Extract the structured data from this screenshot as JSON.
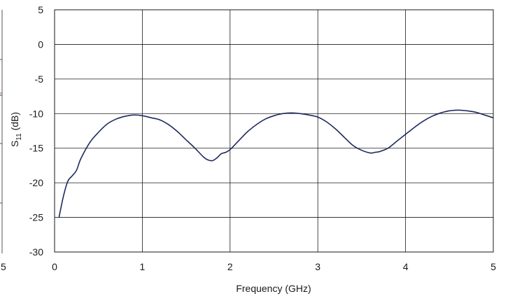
{
  "chart_data": {
    "type": "line",
    "xlabel": "Frequency (GHz)",
    "ylabel": {
      "base": "S",
      "sub": "11",
      "rest": " (dB)"
    },
    "xlim": [
      0,
      5
    ],
    "ylim": [
      -30,
      5
    ],
    "xticks": [
      0,
      1,
      2,
      3,
      4,
      5
    ],
    "yticks": [
      5,
      0,
      -5,
      -10,
      -15,
      -20,
      -25,
      -30
    ],
    "grid": true,
    "line_color": "#1f2a5c",
    "cropped_left_tick": "5",
    "series": [
      {
        "x": [
          0.05,
          0.1,
          0.15,
          0.2,
          0.25,
          0.3,
          0.4,
          0.5,
          0.6,
          0.7,
          0.8,
          0.9,
          1.0,
          1.1,
          1.2,
          1.3,
          1.4,
          1.5,
          1.6,
          1.7,
          1.75,
          1.8,
          1.85,
          1.9,
          1.95,
          2.0,
          2.1,
          2.2,
          2.3,
          2.4,
          2.5,
          2.6,
          2.7,
          2.8,
          2.9,
          3.0,
          3.1,
          3.2,
          3.3,
          3.4,
          3.5,
          3.6,
          3.65,
          3.7,
          3.8,
          3.9,
          4.0,
          4.1,
          4.2,
          4.3,
          4.4,
          4.5,
          4.6,
          4.7,
          4.8,
          4.9,
          5.0
        ],
        "y": [
          -25,
          -22,
          -19.8,
          -19,
          -18.2,
          -16.5,
          -14.2,
          -12.7,
          -11.5,
          -10.8,
          -10.4,
          -10.2,
          -10.3,
          -10.6,
          -10.9,
          -11.6,
          -12.6,
          -13.8,
          -15.0,
          -16.3,
          -16.7,
          -16.8,
          -16.4,
          -15.8,
          -15.6,
          -15.2,
          -13.9,
          -12.6,
          -11.6,
          -10.8,
          -10.3,
          -10.0,
          -9.9,
          -10.0,
          -10.2,
          -10.5,
          -11.2,
          -12.2,
          -13.4,
          -14.6,
          -15.3,
          -15.7,
          -15.6,
          -15.5,
          -15.0,
          -14.0,
          -13.0,
          -12.0,
          -11.1,
          -10.4,
          -9.9,
          -9.6,
          -9.5,
          -9.6,
          -9.8,
          -10.2,
          -10.6
        ]
      }
    ]
  }
}
